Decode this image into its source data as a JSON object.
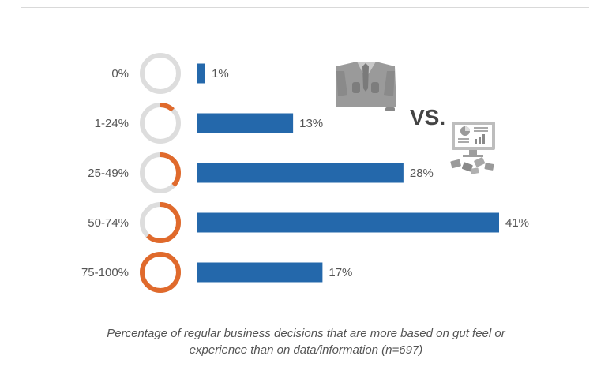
{
  "chart_data": {
    "type": "bar",
    "orientation": "horizontal",
    "categories": [
      "0%",
      "1-24%",
      "25-49%",
      "50-74%",
      "75-100%"
    ],
    "values": [
      1,
      13,
      28,
      41,
      17
    ],
    "value_labels": [
      "1%",
      "13%",
      "28%",
      "41%",
      "17%"
    ],
    "ring_fill_fractions": [
      0,
      0.12,
      0.37,
      0.62,
      1.0
    ],
    "xlim": [
      0,
      41
    ],
    "caption_line1": "Percentage of regular business decisions that are more based on gut feel or",
    "caption_line2": "experience than on data/information (n=697)",
    "annotation": "VS.",
    "colors": {
      "bar": "#2468ab",
      "ring_fill": "#e06a2c",
      "ring_track": "#dddddd",
      "text": "#555555",
      "vs_text": "#444444"
    }
  },
  "icons": {
    "person": "businessman-icon",
    "computer": "computer-data-icon"
  }
}
